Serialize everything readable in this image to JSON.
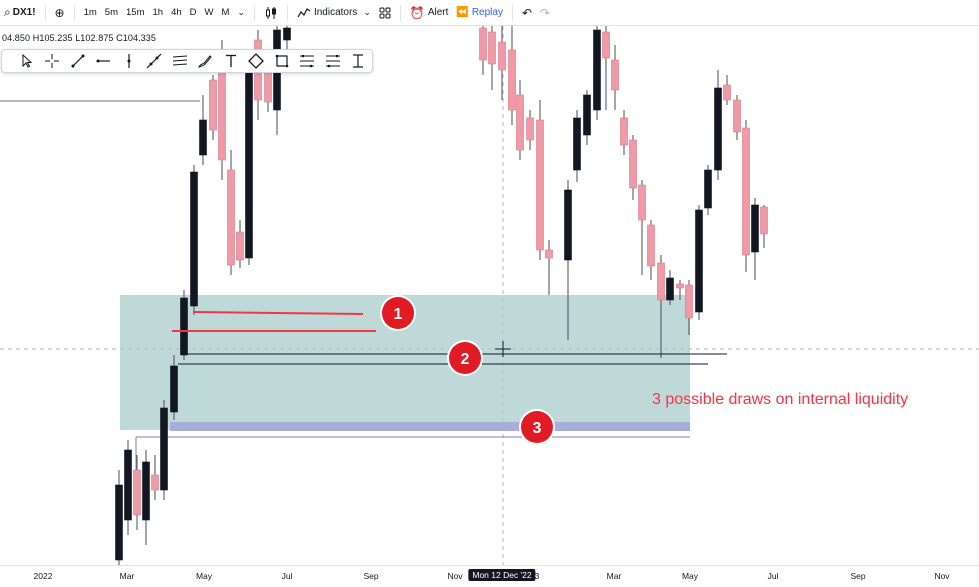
{
  "toolbar": {
    "symbol": "DX1!",
    "timeframes": [
      "1m",
      "5m",
      "15m",
      "1h",
      "4h",
      "D",
      "W",
      "M"
    ],
    "indicators_label": "Indicators",
    "alert_label": "Alert",
    "replay_label": "Replay"
  },
  "ohlc": {
    "open": "04.850",
    "high": "H105.235",
    "low": "L102.875",
    "close": "C104.335"
  },
  "drawing_tools": [
    "cursor-icon",
    "crosshair-icon",
    "trend-line-icon",
    "horizontal-ray-icon",
    "vertical-line-icon",
    "extended-line-icon",
    "parallel-channel-icon",
    "brush-icon",
    "text-icon",
    "anchor-icon",
    "rectangle-icon",
    "fib-retracement-icon",
    "fib-extension-icon",
    "price-range-icon"
  ],
  "annotations": {
    "note": "3 possible draws on internal liquidity",
    "markers": [
      "1",
      "2",
      "3"
    ],
    "note_color": "#f23645"
  },
  "time_axis": {
    "labels": [
      "2022",
      "Mar",
      "May",
      "Jul",
      "Sep",
      "Nov",
      "3",
      "Mar",
      "May",
      "Jul",
      "Sep",
      "Nov"
    ],
    "crosshair_date": "Mon 12 Dec '22"
  },
  "colors": {
    "bull": "#131722",
    "bear": "#ef9aa6",
    "zone": "#a9cccc",
    "liquidity_band": "#a7acd8"
  }
}
